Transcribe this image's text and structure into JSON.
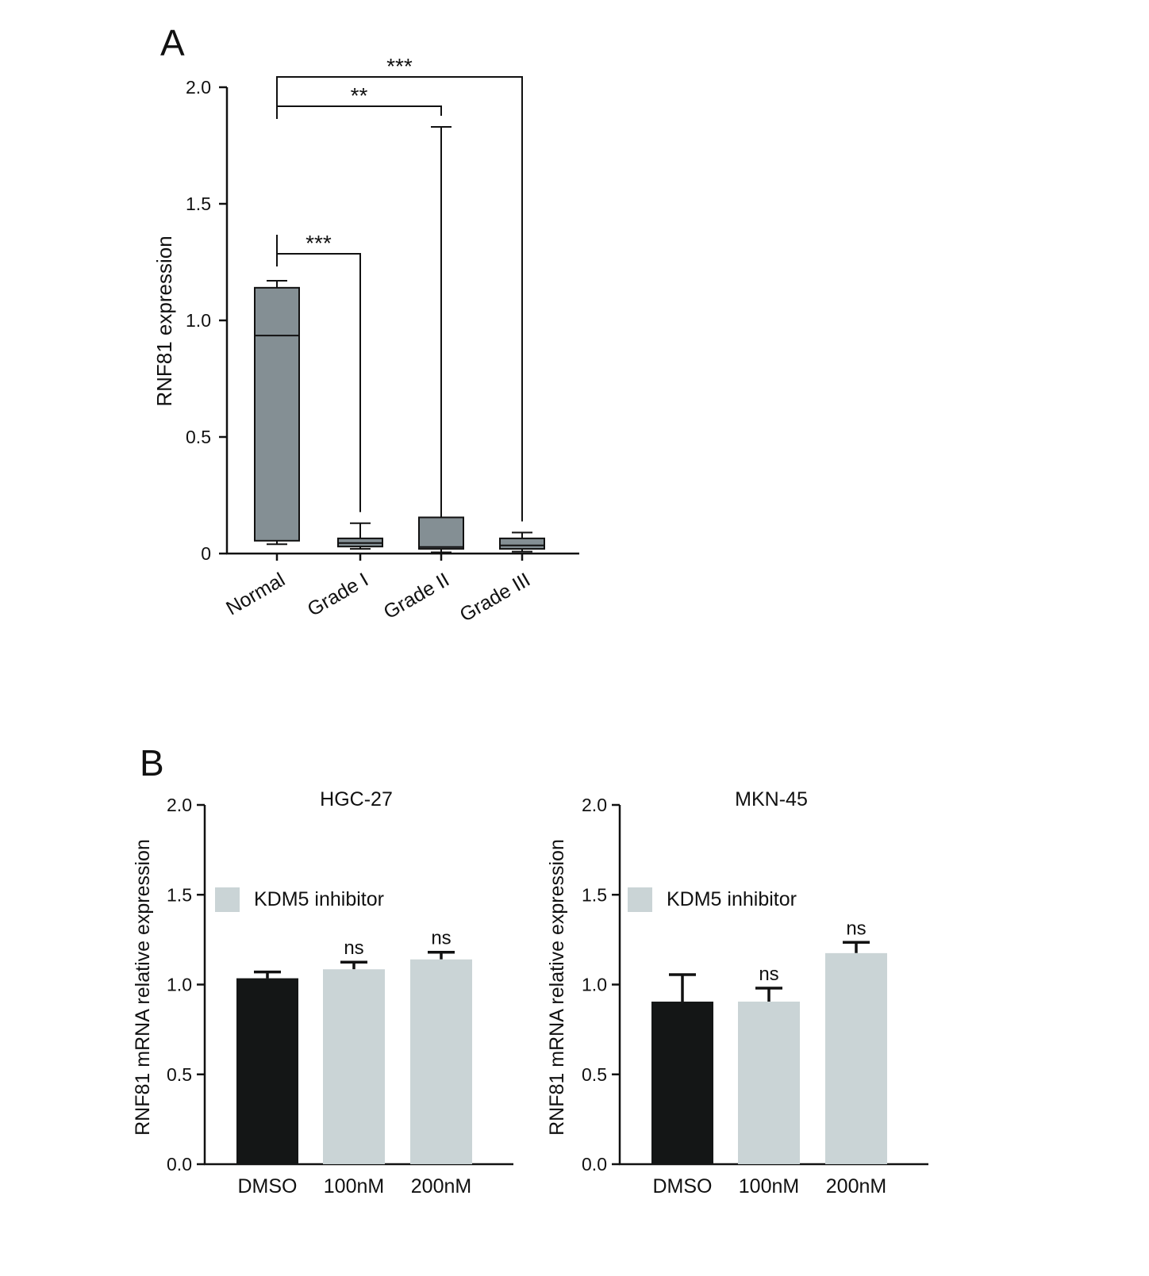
{
  "panels": {
    "a": {
      "label": "A"
    },
    "b": {
      "label": "B"
    }
  },
  "colors": {
    "axis": "#111111",
    "box_fill": "#848f94",
    "dmso_bar": "#141616",
    "inhibitor_bar": "#cad4d6"
  },
  "chart_data": [
    {
      "id": "A",
      "type": "box",
      "title": "",
      "xlabel": "",
      "ylabel": "RNF81 expression",
      "ylim": [
        0,
        2.0
      ],
      "yticks": [
        0,
        0.5,
        1.0,
        1.5,
        2.0
      ],
      "ytick_labels": [
        "0",
        "0.5",
        "1.0",
        "1.5",
        "2.0"
      ],
      "grid": false,
      "categories": [
        "Normal",
        "Grade I",
        "Grade II",
        "Grade III"
      ],
      "boxes": [
        {
          "category": "Normal",
          "min": 0.04,
          "q1": 0.055,
          "median": 0.935,
          "q3": 1.14,
          "max": 1.17
        },
        {
          "category": "Grade I",
          "min": 0.02,
          "q1": 0.03,
          "median": 0.045,
          "q3": 0.065,
          "max": 0.13
        },
        {
          "category": "Grade II",
          "min": 0.005,
          "q1": 0.02,
          "median": 0.028,
          "q3": 0.155,
          "max": 1.83
        },
        {
          "category": "Grade III",
          "min": 0.008,
          "q1": 0.02,
          "median": 0.035,
          "q3": 0.065,
          "max": 0.09
        }
      ],
      "comparisons": [
        {
          "from": "Normal",
          "to": "Grade I",
          "label": "***"
        },
        {
          "from": "Normal",
          "to": "Grade II",
          "label": "**"
        },
        {
          "from": "Normal",
          "to": "Grade III",
          "label": "***"
        }
      ]
    },
    {
      "id": "B-left",
      "type": "bar",
      "title": "HGC-27",
      "xlabel": "",
      "ylabel": "RNF81 mRNA relative expression",
      "ylim": [
        0,
        2.0
      ],
      "yticks": [
        0,
        0.5,
        1.0,
        1.5,
        2.0
      ],
      "ytick_labels": [
        "0.0",
        "0.5",
        "1.0",
        "1.5",
        "2.0"
      ],
      "grid": false,
      "legend": {
        "label": "KDM5 inhibitor",
        "position": "top-left"
      },
      "categories": [
        "DMSO",
        "100nM",
        "200nM"
      ],
      "values": [
        1.035,
        1.085,
        1.14
      ],
      "errors": [
        0.035,
        0.04,
        0.04
      ],
      "significance": [
        "",
        "ns",
        "ns"
      ]
    },
    {
      "id": "B-right",
      "type": "bar",
      "title": "MKN-45",
      "xlabel": "",
      "ylabel": "RNF81 mRNA relative expression",
      "ylim": [
        0,
        2.0
      ],
      "yticks": [
        0,
        0.5,
        1.0,
        1.5,
        2.0
      ],
      "ytick_labels": [
        "0.0",
        "0.5",
        "1.0",
        "1.5",
        "2.0"
      ],
      "grid": false,
      "legend": {
        "label": "KDM5 inhibitor",
        "position": "top-left"
      },
      "categories": [
        "DMSO",
        "100nM",
        "200nM"
      ],
      "values": [
        0.905,
        0.905,
        1.175
      ],
      "errors": [
        0.15,
        0.075,
        0.06
      ],
      "significance": [
        "",
        "ns",
        "ns"
      ]
    }
  ]
}
